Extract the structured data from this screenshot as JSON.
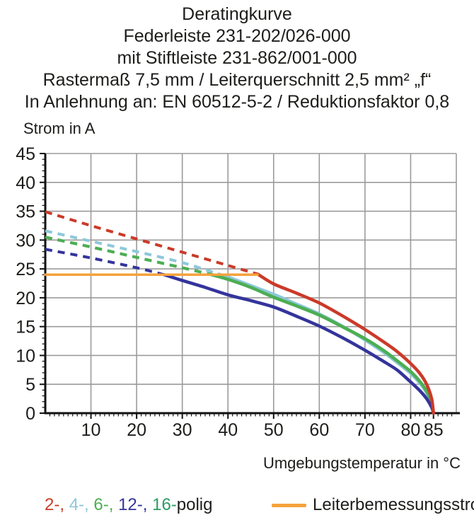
{
  "title": {
    "lines": [
      "Deratingkurve",
      "Federleiste 231-202/026-000",
      "mit Stiftleiste 231-862/001-000",
      "Rastermaß 7,5 mm / Leiterquerschnitt 2,5 mm² „f“",
      "In Anlehnung an: EN 60512-5-2 / Reduktionsfaktor 0,8"
    ]
  },
  "axes": {
    "y_label": "Strom in A",
    "x_label": "Umgebungstemperatur in °C"
  },
  "legend": {
    "poles": [
      {
        "text": "2-, ",
        "color": "#cb3a29"
      },
      {
        "text": "4-, ",
        "color": "#8dc8da"
      },
      {
        "text": "6-, ",
        "color": "#4dae52"
      },
      {
        "text": "12-, ",
        "color": "#34349c"
      },
      {
        "text": "16-",
        "color": "#2d9b63"
      }
    ],
    "suffix": "polig",
    "suffix_color": "#1d1d1b",
    "rated": {
      "label": "Leiterbemessungsstrom",
      "color": "#f5a23c"
    }
  },
  "colors": {
    "grid": "#9b9b9b",
    "axis": "#111111",
    "text": "#1d1d1b"
  },
  "chart_data": {
    "type": "line",
    "title": "Deratingkurve",
    "xlabel": "Umgebungstemperatur in °C",
    "ylabel": "Strom in A",
    "xlim": [
      0,
      90
    ],
    "ylim": [
      0,
      45
    ],
    "x_major_ticks": [
      10,
      20,
      30,
      40,
      50,
      60,
      70,
      80,
      85
    ],
    "y_major_ticks": [
      0,
      5,
      10,
      15,
      20,
      25,
      30,
      35,
      40,
      45
    ],
    "x_minor_step": 1,
    "y_minor_step": 1,
    "grid_x_lines": [
      10,
      20,
      30,
      40,
      50,
      60,
      70,
      80,
      90
    ],
    "grid_y_lines": [
      5,
      10,
      15,
      20,
      25,
      30,
      35,
      40,
      45
    ],
    "legend_position": "bottom",
    "note": "curves are dashed above the rated-current line (24 A) and solid below it; 16-polig coincides with 6-polig",
    "series": [
      {
        "name": "16-polig",
        "color": "#2d9b63",
        "solid_from_x": 36,
        "points": [
          [
            0,
            30.5
          ],
          [
            10,
            28.8
          ],
          [
            20,
            27.0
          ],
          [
            30,
            25.2
          ],
          [
            36,
            24.1
          ],
          [
            40,
            23.2
          ],
          [
            45,
            21.8
          ],
          [
            50,
            20.1
          ],
          [
            55,
            18.6
          ],
          [
            60,
            17.0
          ],
          [
            65,
            15.0
          ],
          [
            70,
            12.9
          ],
          [
            74,
            10.9
          ],
          [
            77,
            9.1
          ],
          [
            80,
            7.2
          ],
          [
            82,
            5.5
          ],
          [
            83.5,
            3.8
          ],
          [
            84.6,
            1.8
          ],
          [
            85,
            0
          ]
        ]
      },
      {
        "name": "4-polig",
        "color": "#8dc8da",
        "solid_from_x": 38,
        "points": [
          [
            0,
            31.6
          ],
          [
            10,
            29.8
          ],
          [
            20,
            28.0
          ],
          [
            30,
            26.1
          ],
          [
            38,
            24.1
          ],
          [
            40,
            23.6
          ],
          [
            45,
            22.1
          ],
          [
            50,
            20.6
          ],
          [
            55,
            18.9
          ],
          [
            60,
            17.2
          ],
          [
            65,
            15.1
          ],
          [
            70,
            12.7
          ],
          [
            74,
            10.6
          ],
          [
            77,
            8.8
          ],
          [
            80,
            6.9
          ],
          [
            82,
            5.2
          ],
          [
            83.5,
            3.5
          ],
          [
            84.6,
            1.6
          ],
          [
            85,
            0
          ]
        ]
      },
      {
        "name": "6-polig",
        "color": "#4dae52",
        "solid_from_x": 36,
        "points": [
          [
            0,
            30.5
          ],
          [
            10,
            28.8
          ],
          [
            20,
            27.0
          ],
          [
            30,
            25.2
          ],
          [
            36,
            24.1
          ],
          [
            40,
            23.2
          ],
          [
            45,
            21.8
          ],
          [
            50,
            20.1
          ],
          [
            55,
            18.6
          ],
          [
            60,
            17.0
          ],
          [
            65,
            15.0
          ],
          [
            70,
            12.9
          ],
          [
            74,
            10.9
          ],
          [
            77,
            9.1
          ],
          [
            80,
            7.2
          ],
          [
            82,
            5.5
          ],
          [
            83.5,
            3.8
          ],
          [
            84.6,
            1.8
          ],
          [
            85,
            0
          ]
        ]
      },
      {
        "name": "12-polig",
        "color": "#34349c",
        "solid_from_x": 26,
        "points": [
          [
            0,
            28.4
          ],
          [
            10,
            26.9
          ],
          [
            20,
            25.2
          ],
          [
            26,
            24.0
          ],
          [
            30,
            23.0
          ],
          [
            35,
            21.8
          ],
          [
            40,
            20.5
          ],
          [
            45,
            19.5
          ],
          [
            50,
            18.4
          ],
          [
            55,
            16.8
          ],
          [
            60,
            15.1
          ],
          [
            65,
            13.1
          ],
          [
            70,
            10.9
          ],
          [
            74,
            9.0
          ],
          [
            77,
            7.5
          ],
          [
            80,
            5.4
          ],
          [
            82,
            3.9
          ],
          [
            83.5,
            2.5
          ],
          [
            84.6,
            1.0
          ],
          [
            85,
            0
          ]
        ]
      },
      {
        "name": "2-polig",
        "color": "#cb3a29",
        "solid_from_x": 46.5,
        "points": [
          [
            0,
            34.9
          ],
          [
            10,
            32.5
          ],
          [
            20,
            30.2
          ],
          [
            30,
            27.9
          ],
          [
            40,
            25.6
          ],
          [
            46.5,
            24.1
          ],
          [
            50,
            22.4
          ],
          [
            55,
            20.8
          ],
          [
            60,
            19.1
          ],
          [
            65,
            16.9
          ],
          [
            70,
            14.5
          ],
          [
            74,
            12.4
          ],
          [
            77,
            10.7
          ],
          [
            80,
            8.6
          ],
          [
            82,
            6.9
          ],
          [
            83.5,
            5.0
          ],
          [
            84.6,
            2.5
          ],
          [
            85,
            0
          ]
        ]
      },
      {
        "name": "Leiterbemessungsstrom",
        "color": "#f5a23c",
        "solid_from_x": 0,
        "width": 3.5,
        "points": [
          [
            0,
            24
          ],
          [
            46.5,
            24
          ]
        ]
      }
    ]
  }
}
